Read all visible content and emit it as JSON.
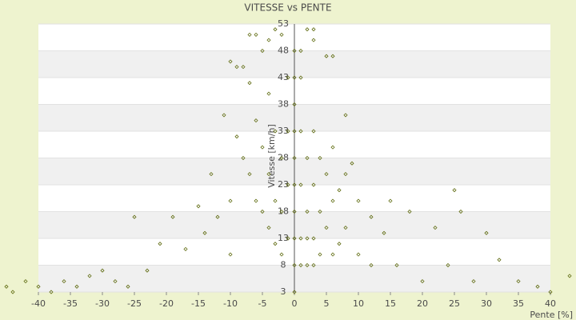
{
  "chart_data": {
    "type": "scatter",
    "title": "VITESSE vs PENTE",
    "x_label": "Pente [%]",
    "y_label": "Vitesse [km/h]",
    "color": "#5f6b10",
    "xlim": [
      -46,
      44
    ],
    "ylim": [
      3,
      53
    ],
    "xticks": [
      -40,
      -35,
      -30,
      -25,
      -20,
      -15,
      -10,
      -5,
      0,
      5,
      10,
      15,
      20,
      25,
      30,
      35,
      40
    ],
    "yticks": [
      3,
      8,
      13,
      18,
      23,
      28,
      33,
      38,
      43,
      48,
      53
    ],
    "grid": true,
    "x": [
      0,
      0,
      0,
      0,
      0,
      0,
      0,
      0,
      0,
      0,
      1,
      1,
      1,
      1,
      1,
      2,
      2,
      2,
      2,
      3,
      3,
      3,
      3,
      4,
      4,
      4,
      5,
      5,
      6,
      6,
      6,
      7,
      7,
      8,
      8,
      9,
      10,
      10,
      12,
      12,
      14,
      15,
      16,
      18,
      20,
      22,
      24,
      25,
      26,
      28,
      30,
      32,
      35,
      38,
      40,
      43,
      1,
      2,
      3,
      5,
      6,
      8,
      3,
      -1,
      -1,
      -1,
      -1,
      -2,
      -2,
      -2,
      -3,
      -3,
      -3,
      -4,
      -4,
      -4,
      -5,
      -5,
      -5,
      -6,
      -6,
      -6,
      -7,
      -7,
      -8,
      -8,
      -9,
      -10,
      -10,
      -11,
      -12,
      -13,
      -14,
      -15,
      -17,
      -19,
      -21,
      -23,
      -25,
      -26,
      -28,
      -30,
      -32,
      -34,
      -36,
      -38,
      -40,
      -42,
      -44,
      -45,
      -3,
      -2,
      -4,
      -7,
      -9,
      -10
    ],
    "values": [
      3,
      8,
      13,
      18,
      23,
      28,
      33,
      38,
      43,
      48,
      43,
      33,
      23,
      13,
      8,
      28,
      18,
      13,
      8,
      33,
      23,
      13,
      8,
      28,
      18,
      10,
      25,
      15,
      30,
      20,
      10,
      22,
      12,
      25,
      15,
      27,
      20,
      10,
      17,
      8,
      14,
      20,
      8,
      18,
      5,
      15,
      8,
      22,
      18,
      5,
      14,
      9,
      5,
      4,
      3,
      6,
      48,
      52,
      52,
      47,
      47,
      36,
      50,
      43,
      33,
      23,
      13,
      28,
      18,
      10,
      33,
      20,
      12,
      40,
      25,
      15,
      48,
      30,
      18,
      51,
      35,
      20,
      42,
      25,
      45,
      28,
      32,
      20,
      10,
      36,
      17,
      25,
      14,
      19,
      11,
      17,
      12,
      7,
      17,
      4,
      5,
      7,
      6,
      4,
      5,
      3,
      4,
      5,
      3,
      4,
      52,
      51,
      50,
      51,
      45,
      46
    ]
  }
}
